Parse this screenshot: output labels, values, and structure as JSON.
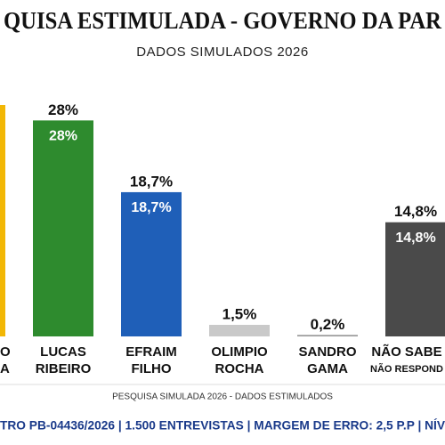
{
  "chart_data": {
    "type": "bar",
    "title": "QUISA ESTIMULADA - GOVERNO DA PAR",
    "subtitle": "DADOS SIMULADOS 2026",
    "categories": [
      [
        "O",
        "A"
      ],
      [
        "LUCAS",
        "RIBEIRO"
      ],
      [
        "EFRAIM",
        "FILHO"
      ],
      [
        "OLIMPIO",
        "ROCHA"
      ],
      [
        "SANDRO",
        "GAMA"
      ],
      [
        "NÃO SABE",
        "NÃO RESPOND"
      ]
    ],
    "values": [
      30,
      28,
      18.7,
      1.5,
      0.2,
      14.8
    ],
    "value_labels": [
      null,
      "28%",
      "18,7%",
      "1,5%",
      "0,2%",
      "14,8%"
    ],
    "colors": [
      "#f2b705",
      "#2e8b2e",
      "#1f5fb8",
      "#c9c9c9",
      "#9c9c9c",
      "#4a4a4a"
    ],
    "ylim": [
      0,
      30
    ],
    "footnote": "PESQUISA SIMULADA 2026 - DADOS ESTIMULADOS",
    "registry": "TRO PB-04436/2026 | 1.500 ENTREVISTAS | MARGEM DE ERRO: 2,5 P.P | NÍV"
  }
}
